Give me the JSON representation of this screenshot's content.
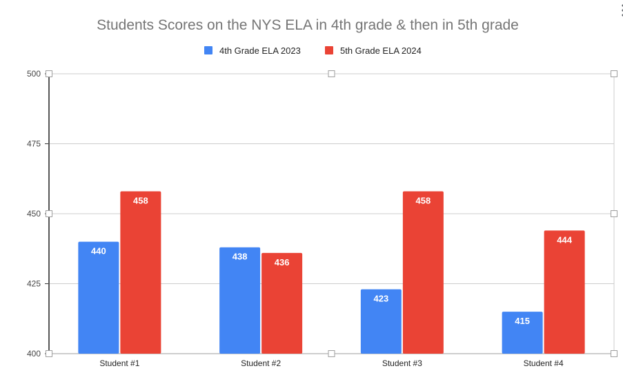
{
  "menu": {
    "icon": "vertical-ellipsis-icon"
  },
  "chart_data": {
    "type": "bar",
    "title": "Students Scores on the NYS ELA in 4th grade & then in 5th grade",
    "categories": [
      "Student #1",
      "Student #2",
      "Student #3",
      "Student #4"
    ],
    "series": [
      {
        "name": "4th Grade ELA 2023",
        "color": "#4285f4",
        "values": [
          440,
          438,
          423,
          415
        ]
      },
      {
        "name": "5th Grade ELA 2024",
        "color": "#ea4335",
        "values": [
          458,
          436,
          458,
          444
        ]
      }
    ],
    "yticks": [
      "400",
      "425",
      "450",
      "475",
      "500"
    ],
    "ylim": [
      400,
      500
    ],
    "grid": true,
    "legend": "top",
    "xlabel": "",
    "ylabel": ""
  }
}
